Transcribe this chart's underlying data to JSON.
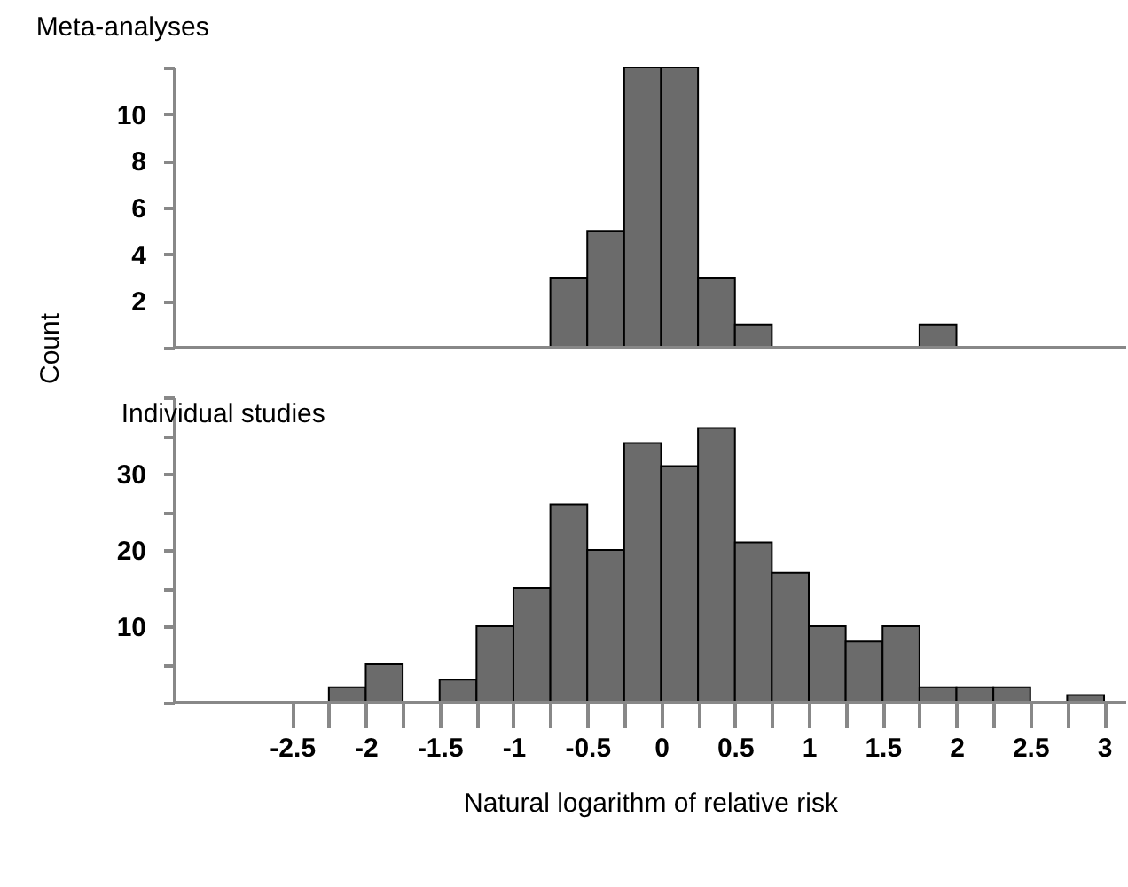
{
  "chart_data": [
    {
      "type": "histogram",
      "title": "Meta-analyses",
      "ylabel": "Count",
      "color": "#6b6b6b",
      "bins": [
        -2.5,
        -2.25,
        -2,
        -1.75,
        -1.5,
        -1.25,
        -1,
        -0.75,
        -0.5,
        -0.25,
        0,
        0.25,
        0.5,
        0.75,
        1,
        1.25,
        1.5,
        1.75,
        2,
        2.25,
        2.5,
        2.75,
        3
      ],
      "values": [
        0,
        0,
        0,
        0,
        0,
        0,
        0,
        3,
        5,
        12,
        12,
        3,
        1,
        0,
        0,
        0,
        0,
        1,
        0,
        0,
        0,
        0
      ],
      "xlim": [
        -3.3,
        3.15
      ],
      "ylim": [
        0,
        12
      ],
      "yticks": [
        {
          "value": 0,
          "label": null
        },
        2,
        4,
        6,
        8,
        10,
        {
          "value": 12,
          "label": null
        }
      ],
      "tick_labels": "y",
      "grid": false,
      "legend": false
    },
    {
      "type": "histogram",
      "title": "Individual studies",
      "xlabel": "Natural logarithm of relative risk",
      "color": "#6b6b6b",
      "bins": [
        -2.5,
        -2.25,
        -2,
        -1.75,
        -1.5,
        -1.25,
        -1,
        -0.75,
        -0.5,
        -0.25,
        0,
        0.25,
        0.5,
        0.75,
        1,
        1.25,
        1.5,
        1.75,
        2,
        2.25,
        2.5,
        2.75,
        3
      ],
      "values": [
        0,
        2,
        5,
        0,
        3,
        10,
        15,
        26,
        20,
        34,
        31,
        36,
        21,
        17,
        10,
        8,
        10,
        2,
        2,
        2,
        0,
        1
      ],
      "xlim": [
        -3.3,
        3.15
      ],
      "xticks": [
        -2.5,
        {
          "value": -2.25,
          "label": null
        },
        -2,
        {
          "value": -1.75,
          "label": null
        },
        -1.5,
        {
          "value": -1.25,
          "label": null
        },
        -1,
        {
          "value": -0.75,
          "label": null
        },
        -0.5,
        {
          "value": -0.25,
          "label": null
        },
        0,
        {
          "value": 0.25,
          "label": null
        },
        0.5,
        {
          "value": 0.75,
          "label": null
        },
        1,
        {
          "value": 1.25,
          "label": null
        },
        1.5,
        {
          "value": 1.75,
          "label": null
        },
        2,
        {
          "value": 2.25,
          "label": null
        },
        2.5,
        {
          "value": 2.75,
          "label": null
        },
        3
      ],
      "ylim": [
        0,
        40
      ],
      "yticks": [
        {
          "value": 0,
          "label": null
        },
        {
          "value": 5,
          "label": null
        },
        10,
        {
          "value": 15,
          "label": null
        },
        20,
        {
          "value": 25,
          "label": null
        },
        30,
        {
          "value": 35,
          "label": null
        },
        {
          "value": 40,
          "label": null
        }
      ],
      "grid": false,
      "legend": false
    }
  ]
}
